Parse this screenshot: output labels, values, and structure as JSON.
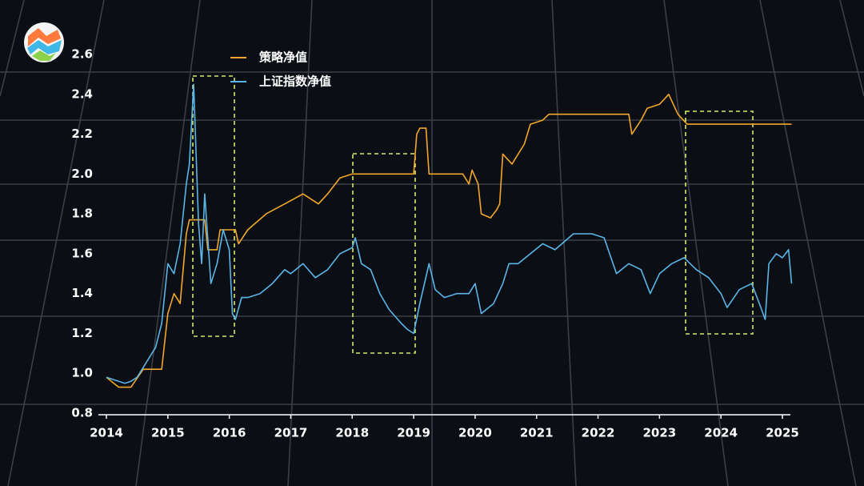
{
  "chart_data": {
    "type": "line",
    "xlim": [
      2014,
      2025
    ],
    "xticks": [
      2014,
      2015,
      2016,
      2017,
      2018,
      2019,
      2020,
      2021,
      2022,
      2023,
      2024,
      2025
    ],
    "ylim": [
      0.8,
      2.6
    ],
    "yticks": [
      0.8,
      {
        "value": 1,
        "label": "1.0"
      },
      1.2,
      1.4,
      1.6,
      1.8,
      {
        "value": 2,
        "label": "2.0"
      },
      2.2,
      2.4,
      2.6
    ],
    "legend": "upper left",
    "series": [
      {
        "name": "策略净值",
        "color": "#f2a72a",
        "x": [
          2014.0,
          2014.2,
          2014.4,
          2014.6,
          2014.9,
          2015.0,
          2015.1,
          2015.2,
          2015.3,
          2015.35,
          2015.6,
          2015.65,
          2015.8,
          2015.85,
          2016.1,
          2016.15,
          2016.3,
          2016.6,
          2016.9,
          2017.2,
          2017.45,
          2017.6,
          2017.8,
          2018.0,
          2019.0,
          2019.05,
          2019.1,
          2019.2,
          2019.25,
          2019.8,
          2019.9,
          2019.95,
          2020.05,
          2020.1,
          2020.25,
          2020.35,
          2020.4,
          2020.45,
          2020.6,
          2020.8,
          2020.9,
          2021.1,
          2021.2,
          2022.5,
          2022.55,
          2022.7,
          2022.8,
          2023.0,
          2023.15,
          2023.3,
          2023.45,
          2025.0,
          2025.15
        ],
        "values": [
          0.98,
          0.93,
          0.93,
          1.02,
          1.02,
          1.3,
          1.4,
          1.35,
          1.7,
          1.77,
          1.77,
          1.62,
          1.62,
          1.72,
          1.72,
          1.65,
          1.72,
          1.8,
          1.85,
          1.9,
          1.85,
          1.9,
          1.98,
          2.0,
          2.0,
          2.2,
          2.23,
          2.23,
          2.0,
          2.0,
          1.95,
          2.02,
          1.95,
          1.8,
          1.78,
          1.82,
          1.85,
          2.1,
          2.05,
          2.15,
          2.25,
          2.27,
          2.3,
          2.3,
          2.2,
          2.27,
          2.33,
          2.35,
          2.4,
          2.3,
          2.25,
          2.25,
          2.25
        ]
      },
      {
        "name": "上证指数净值",
        "color": "#5ab6e8",
        "x": [
          2014.0,
          2014.1,
          2014.2,
          2014.3,
          2014.4,
          2014.5,
          2014.6,
          2014.7,
          2014.8,
          2014.9,
          2015.0,
          2015.1,
          2015.2,
          2015.3,
          2015.35,
          2015.42,
          2015.5,
          2015.55,
          2015.6,
          2015.7,
          2015.8,
          2015.9,
          2016.0,
          2016.05,
          2016.1,
          2016.2,
          2016.3,
          2016.5,
          2016.7,
          2016.9,
          2017.0,
          2017.2,
          2017.4,
          2017.6,
          2017.8,
          2018.0,
          2018.05,
          2018.15,
          2018.3,
          2018.45,
          2018.6,
          2018.8,
          2018.9,
          2019.0,
          2019.1,
          2019.25,
          2019.35,
          2019.5,
          2019.7,
          2019.9,
          2020.0,
          2020.1,
          2020.3,
          2020.45,
          2020.55,
          2020.7,
          2020.9,
          2021.1,
          2021.3,
          2021.6,
          2021.9,
          2022.1,
          2022.3,
          2022.5,
          2022.7,
          2022.85,
          2023.0,
          2023.2,
          2023.4,
          2023.6,
          2023.8,
          2024.0,
          2024.1,
          2024.3,
          2024.5,
          2024.65,
          2024.72,
          2024.78,
          2024.9,
          2025.0,
          2025.1,
          2025.15
        ],
        "values": [
          0.98,
          0.97,
          0.96,
          0.95,
          0.96,
          0.98,
          1.03,
          1.08,
          1.13,
          1.25,
          1.55,
          1.5,
          1.65,
          1.95,
          2.05,
          2.45,
          1.75,
          1.55,
          1.9,
          1.45,
          1.55,
          1.72,
          1.62,
          1.3,
          1.27,
          1.38,
          1.38,
          1.4,
          1.45,
          1.52,
          1.5,
          1.55,
          1.48,
          1.52,
          1.6,
          1.63,
          1.68,
          1.55,
          1.52,
          1.4,
          1.32,
          1.25,
          1.22,
          1.2,
          1.35,
          1.55,
          1.42,
          1.38,
          1.4,
          1.4,
          1.45,
          1.3,
          1.35,
          1.45,
          1.55,
          1.55,
          1.6,
          1.65,
          1.62,
          1.7,
          1.7,
          1.68,
          1.5,
          1.55,
          1.52,
          1.4,
          1.5,
          1.55,
          1.58,
          1.52,
          1.48,
          1.4,
          1.33,
          1.42,
          1.45,
          1.33,
          1.27,
          1.55,
          1.6,
          1.58,
          1.62,
          1.45
        ]
      }
    ]
  }
}
